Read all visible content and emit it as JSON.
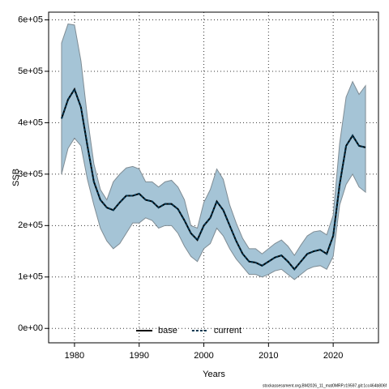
{
  "chart_data": {
    "type": "line",
    "x_label": "Years",
    "y_label": "SSB",
    "footnote": "stockassessment.org,BM2026_11_mat0MRP,r19597,git:1cc464b806f",
    "x": [
      1978,
      1979,
      1980,
      1981,
      1982,
      1983,
      1984,
      1985,
      1986,
      1987,
      1988,
      1989,
      1990,
      1991,
      1992,
      1993,
      1994,
      1995,
      1996,
      1997,
      1998,
      1999,
      2000,
      2001,
      2002,
      2003,
      2004,
      2005,
      2006,
      2007,
      2008,
      2009,
      2010,
      2011,
      2012,
      2013,
      2014,
      2015,
      2016,
      2017,
      2018,
      2019,
      2020,
      2021,
      2022,
      2023,
      2024,
      2025
    ],
    "band": {
      "color": "#a5c4d6",
      "edge": "#7f8c94",
      "upper": [
        555000,
        592000,
        590000,
        520000,
        410000,
        320000,
        270000,
        250000,
        285000,
        300000,
        312000,
        315000,
        310000,
        285000,
        285000,
        275000,
        285000,
        288000,
        275000,
        250000,
        200000,
        195000,
        245000,
        270000,
        310000,
        290000,
        240000,
        205000,
        175000,
        155000,
        155000,
        145000,
        155000,
        165000,
        172000,
        160000,
        142000,
        162000,
        180000,
        188000,
        190000,
        182000,
        220000,
        360000,
        450000,
        480000,
        455000,
        472000
      ],
      "lower": [
        300000,
        350000,
        370000,
        355000,
        290000,
        240000,
        195000,
        170000,
        155000,
        165000,
        185000,
        205000,
        205000,
        215000,
        210000,
        195000,
        200000,
        200000,
        185000,
        160000,
        140000,
        130000,
        155000,
        165000,
        195000,
        180000,
        155000,
        135000,
        120000,
        105000,
        105000,
        100000,
        105000,
        112000,
        115000,
        105000,
        95000,
        105000,
        115000,
        120000,
        122000,
        115000,
        140000,
        240000,
        280000,
        300000,
        275000,
        265000
      ]
    },
    "series": [
      {
        "name": "base",
        "color": "#000000",
        "dash": false,
        "values": [
          408000,
          445000,
          465000,
          430000,
          355000,
          285000,
          250000,
          235000,
          230000,
          245000,
          258000,
          258000,
          262000,
          250000,
          247000,
          235000,
          242000,
          242000,
          232000,
          210000,
          185000,
          172000,
          200000,
          215000,
          247000,
          230000,
          200000,
          170000,
          145000,
          130000,
          128000,
          122000,
          130000,
          138000,
          142000,
          130000,
          115000,
          130000,
          145000,
          150000,
          153000,
          145000,
          180000,
          280000,
          355000,
          375000,
          355000,
          352000
        ]
      },
      {
        "name": "current",
        "color": "#00334d",
        "dash": true,
        "values": [
          408000,
          445000,
          465000,
          430000,
          355000,
          285000,
          250000,
          235000,
          230000,
          245000,
          258000,
          258000,
          262000,
          250000,
          247000,
          235000,
          242000,
          242000,
          232000,
          210000,
          185000,
          172000,
          200000,
          215000,
          247000,
          230000,
          200000,
          170000,
          145000,
          130000,
          128000,
          122000,
          130000,
          138000,
          142000,
          130000,
          115000,
          130000,
          145000,
          150000,
          153000,
          145000,
          180000,
          280000,
          355000,
          375000,
          355000,
          352000
        ]
      }
    ],
    "xlim": [
      1976,
      2027
    ],
    "xticks": [
      1980,
      1990,
      2000,
      2010,
      2020
    ],
    "ylim": [
      -28000,
      615000
    ],
    "yticks": [
      {
        "value": 0,
        "label": "0e+00"
      },
      {
        "value": 100000,
        "label": "1e+05"
      },
      {
        "value": 200000,
        "label": "2e+05"
      },
      {
        "value": 300000,
        "label": "3e+05"
      },
      {
        "value": 400000,
        "label": "4e+05"
      },
      {
        "value": 500000,
        "label": "5e+05"
      },
      {
        "value": 600000,
        "label": "6e+05"
      }
    ],
    "grid": true,
    "legend": "bottom"
  }
}
